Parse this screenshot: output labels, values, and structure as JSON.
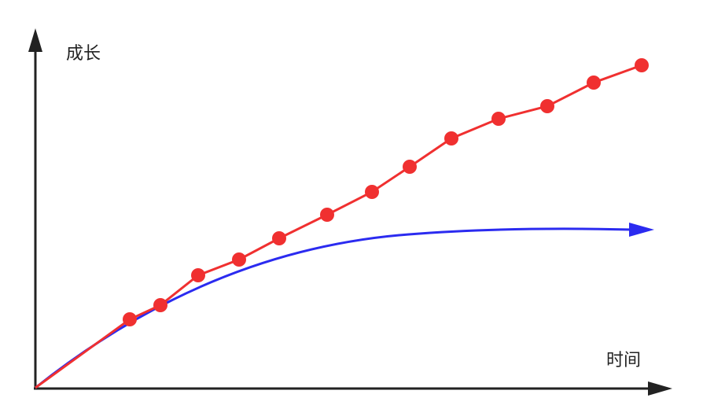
{
  "labels": {
    "y_axis": "成长",
    "x_axis": "时间"
  },
  "colors": {
    "axis": "#222222",
    "dotted_series": "#f03030",
    "smooth_curve": "#2b2bf0",
    "background": "#ffffff"
  }
}
